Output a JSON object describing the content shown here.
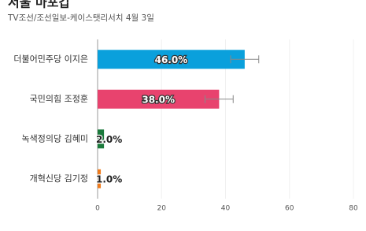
{
  "chart_data": {
    "type": "bar",
    "orientation": "horizontal",
    "title": "서울 마포갑",
    "subtitle": "TV조선/조선일보-케이스탯리서치 4월 3일",
    "categories": [
      "더불어민주당 이지은",
      "국민의힘 조정훈",
      "녹색정의당 김혜미",
      "개혁신당 김기정"
    ],
    "values": [
      46.0,
      38.0,
      2.0,
      1.0
    ],
    "value_labels": [
      "46.0%",
      "38.0%",
      "2.0%",
      "1.0%"
    ],
    "errors": [
      4.4,
      4.4,
      null,
      null
    ],
    "colors": [
      "#0aa0dc",
      "#e8436e",
      "#1b7a3c",
      "#ef7b1c"
    ],
    "xlim": [
      0,
      80
    ],
    "xticks": [
      0,
      20,
      40,
      60,
      80
    ],
    "grid": true
  }
}
